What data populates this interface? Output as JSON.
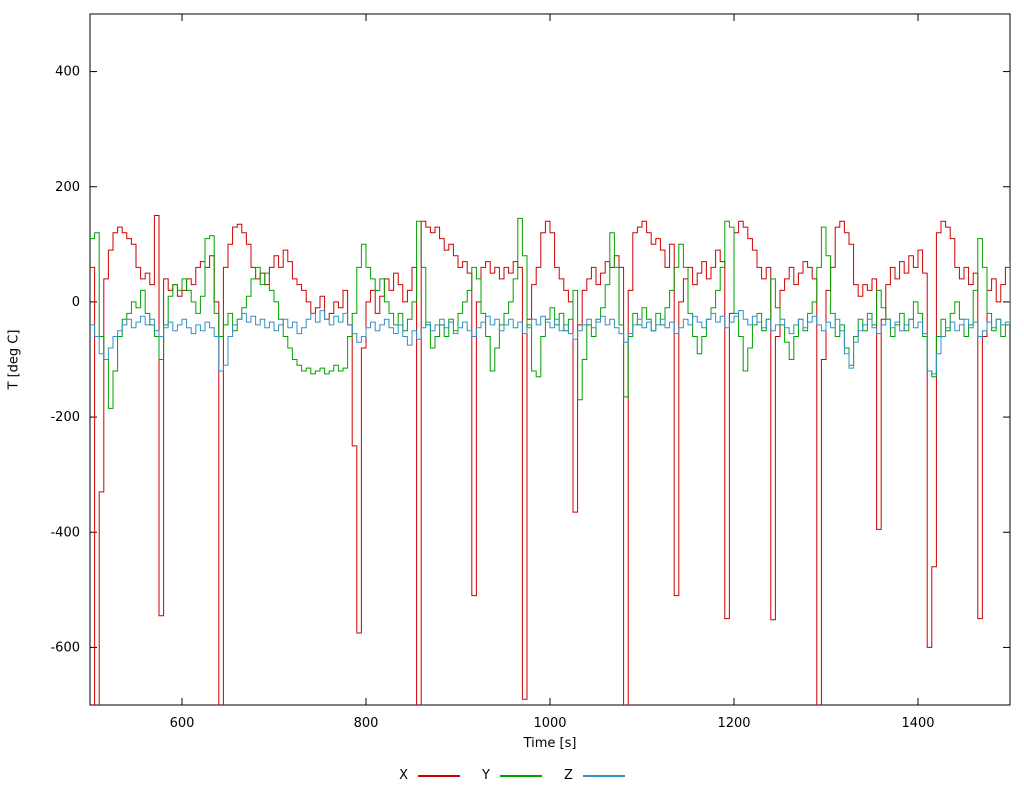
{
  "chart_data": {
    "type": "line",
    "line_style": "steps",
    "title": "",
    "xlabel": "Time [s]",
    "ylabel": "T [deg C]",
    "xlim": [
      500,
      1500
    ],
    "ylim": [
      -700,
      500
    ],
    "xticks": [
      600,
      800,
      1000,
      1200,
      1400
    ],
    "yticks": [
      -600,
      -400,
      -200,
      0,
      200,
      400
    ],
    "grid": false,
    "legend_position": "bottom-center",
    "background": "#ffffff",
    "border_color": "#000000",
    "x_start": 500,
    "x_step": 5,
    "series": [
      {
        "name": "X",
        "color": "#cc0000",
        "values": [
          60,
          -750,
          -330,
          40,
          90,
          120,
          130,
          120,
          110,
          100,
          60,
          40,
          50,
          30,
          150,
          -545,
          40,
          20,
          30,
          10,
          20,
          40,
          30,
          60,
          70,
          60,
          80,
          0,
          -750,
          60,
          100,
          130,
          135,
          120,
          100,
          60,
          40,
          50,
          30,
          60,
          80,
          60,
          90,
          70,
          40,
          30,
          20,
          0,
          -20,
          -10,
          10,
          -30,
          -20,
          0,
          -10,
          20,
          -40,
          -250,
          -575,
          -80,
          0,
          20,
          -20,
          10,
          40,
          20,
          50,
          30,
          0,
          20,
          60,
          -750,
          140,
          130,
          120,
          130,
          110,
          90,
          100,
          80,
          60,
          70,
          50,
          -510,
          0,
          60,
          70,
          50,
          60,
          40,
          60,
          50,
          70,
          60,
          -690,
          -30,
          30,
          60,
          120,
          140,
          120,
          60,
          40,
          20,
          0,
          -365,
          -40,
          20,
          40,
          60,
          30,
          50,
          70,
          60,
          80,
          60,
          -710,
          20,
          120,
          130,
          140,
          120,
          100,
          110,
          90,
          60,
          100,
          -510,
          0,
          40,
          60,
          30,
          50,
          70,
          40,
          60,
          90,
          70,
          -550,
          -20,
          120,
          140,
          130,
          110,
          90,
          60,
          40,
          60,
          -552,
          -60,
          20,
          40,
          60,
          30,
          50,
          70,
          60,
          40,
          -720,
          -100,
          20,
          60,
          130,
          140,
          120,
          100,
          30,
          10,
          30,
          20,
          40,
          -395,
          -30,
          30,
          60,
          40,
          70,
          50,
          80,
          60,
          90,
          50,
          -600,
          -460,
          120,
          140,
          130,
          110,
          60,
          40,
          60,
          30,
          50,
          -550,
          -60,
          20,
          40,
          0,
          30,
          60,
          70
        ]
      },
      {
        "name": "Y",
        "color": "#00a000",
        "values": [
          110,
          120,
          -60,
          -100,
          -185,
          -120,
          -60,
          -30,
          -20,
          0,
          -10,
          20,
          -20,
          -40,
          -60,
          -100,
          -40,
          10,
          30,
          20,
          40,
          20,
          0,
          -20,
          10,
          110,
          115,
          -20,
          -60,
          -40,
          -20,
          -50,
          -30,
          -10,
          10,
          40,
          60,
          30,
          50,
          20,
          0,
          -30,
          -60,
          -80,
          -100,
          -110,
          -120,
          -115,
          -125,
          -120,
          -115,
          -125,
          -120,
          -110,
          -120,
          -115,
          -60,
          -20,
          60,
          100,
          60,
          40,
          20,
          40,
          0,
          -20,
          -40,
          -20,
          -50,
          -30,
          0,
          140,
          60,
          -40,
          -80,
          -60,
          -40,
          -60,
          -30,
          -50,
          -20,
          0,
          20,
          60,
          40,
          -20,
          -60,
          -120,
          -80,
          -40,
          -20,
          0,
          40,
          145,
          80,
          -40,
          -120,
          -130,
          -60,
          -30,
          -10,
          -40,
          -20,
          -50,
          -30,
          20,
          -170,
          -100,
          -40,
          -60,
          -30,
          -10,
          30,
          120,
          60,
          -40,
          -165,
          -60,
          -20,
          -40,
          -10,
          -30,
          -50,
          -20,
          -40,
          -10,
          20,
          60,
          100,
          60,
          -20,
          -60,
          -90,
          -60,
          -30,
          -10,
          20,
          60,
          140,
          130,
          -20,
          -60,
          -120,
          -80,
          -40,
          -20,
          -50,
          -30,
          40,
          -10,
          -40,
          -70,
          -100,
          -60,
          -30,
          -50,
          -20,
          0,
          60,
          130,
          80,
          -20,
          -60,
          -40,
          -80,
          -110,
          -60,
          -30,
          -50,
          -20,
          -40,
          20,
          -10,
          -30,
          -60,
          -40,
          -20,
          -50,
          -30,
          0,
          -20,
          -60,
          -120,
          -130,
          -60,
          -30,
          -50,
          -20,
          0,
          -30,
          -60,
          -40,
          20,
          110,
          60,
          -20,
          -50,
          -30,
          -60,
          -40,
          60
        ]
      },
      {
        "name": "Z",
        "color": "#3090c7",
        "values": [
          -40,
          -60,
          -90,
          -100,
          -80,
          -60,
          -50,
          -40,
          -30,
          -45,
          -35,
          -25,
          -40,
          -30,
          -50,
          -60,
          -45,
          -35,
          -50,
          -40,
          -30,
          -45,
          -55,
          -40,
          -50,
          -35,
          -45,
          -60,
          -120,
          -110,
          -60,
          -40,
          -30,
          -20,
          -35,
          -25,
          -40,
          -30,
          -45,
          -35,
          -50,
          -40,
          -30,
          -45,
          -35,
          -55,
          -45,
          -30,
          -20,
          -35,
          -15,
          -30,
          -40,
          -25,
          -35,
          -20,
          -40,
          -55,
          -70,
          -60,
          -45,
          -35,
          -50,
          -40,
          -30,
          -45,
          -55,
          -40,
          -60,
          -75,
          -50,
          -65,
          -45,
          -35,
          -50,
          -40,
          -30,
          -45,
          -35,
          -55,
          -45,
          -35,
          -50,
          -60,
          -45,
          -35,
          -25,
          -40,
          -30,
          -50,
          -40,
          -30,
          -45,
          -35,
          -55,
          -45,
          -30,
          -40,
          -25,
          -35,
          -45,
          -30,
          -50,
          -40,
          -55,
          -65,
          -50,
          -40,
          -30,
          -45,
          -35,
          -25,
          -40,
          -30,
          -45,
          -55,
          -70,
          -55,
          -40,
          -30,
          -45,
          -35,
          -50,
          -40,
          -30,
          -45,
          -35,
          -55,
          -45,
          -30,
          -40,
          -25,
          -35,
          -45,
          -30,
          -20,
          -35,
          -25,
          -45,
          -35,
          -25,
          -15,
          -30,
          -40,
          -25,
          -35,
          -45,
          -30,
          -50,
          -40,
          -30,
          -45,
          -55,
          -40,
          -30,
          -45,
          -35,
          -25,
          -40,
          -50,
          -35,
          -45,
          -30,
          -50,
          -90,
          -115,
          -70,
          -50,
          -40,
          -30,
          -45,
          -55,
          -40,
          -30,
          -45,
          -35,
          -50,
          -40,
          -30,
          -45,
          -35,
          -55,
          -120,
          -125,
          -90,
          -60,
          -45,
          -35,
          -50,
          -40,
          -30,
          -45,
          -35,
          -60,
          -50,
          -35,
          -45,
          -30,
          -40,
          -35,
          -30
        ]
      }
    ]
  }
}
